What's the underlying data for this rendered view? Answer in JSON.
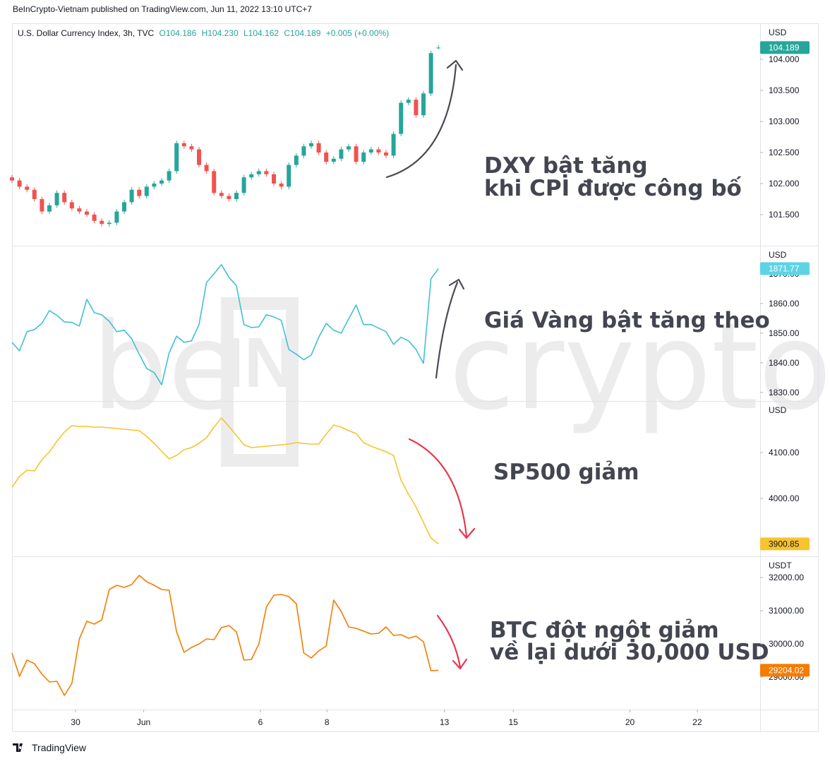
{
  "header": "BeInCrypto-Vietnam published on TradingView.com, Jun 11, 2022 13:10 UTC+7",
  "footer": "TradingView",
  "watermark": [
    "be",
    "IN",
    "crypto"
  ],
  "chart_data": [
    {
      "type": "candlestick",
      "legend": [
        "U.S. Dollar Currency Index, 3h, TVC",
        "O104.186",
        "H104.230",
        "L104.162",
        "C104.189",
        "+0.005 (+0.00%)"
      ],
      "unit": "USD",
      "annotations": [
        "DXY bật tăng",
        "khi CPI được công bố"
      ],
      "up_color": "#26a69a",
      "down_color": "#ef5350",
      "x": [
        0,
        1,
        2,
        3,
        4,
        5,
        6,
        7,
        8,
        9,
        10,
        11,
        12,
        13,
        14,
        15,
        16,
        17,
        18,
        19,
        20,
        21,
        22,
        23,
        24,
        25,
        26,
        27,
        28,
        29,
        30,
        31,
        32,
        33,
        34,
        35,
        36,
        37,
        38,
        39,
        40,
        41,
        42,
        43,
        44,
        45,
        46,
        47,
        48,
        49,
        50,
        51,
        52,
        53,
        54,
        55,
        56,
        57
      ],
      "open": [
        102.1,
        102.05,
        101.95,
        101.9,
        101.75,
        101.55,
        101.65,
        101.85,
        101.7,
        101.6,
        101.55,
        101.5,
        101.4,
        101.35,
        101.37,
        101.55,
        101.7,
        101.9,
        101.8,
        101.95,
        102.0,
        102.05,
        102.2,
        102.65,
        102.6,
        102.55,
        102.3,
        102.2,
        101.85,
        101.8,
        101.75,
        101.85,
        102.1,
        102.15,
        102.2,
        102.15,
        102.0,
        101.95,
        102.3,
        102.45,
        102.6,
        102.65,
        102.5,
        102.35,
        102.4,
        102.55,
        102.6,
        102.35,
        102.5,
        102.55,
        102.5,
        102.45,
        102.8,
        103.3,
        103.35,
        103.1,
        103.45,
        104.186
      ],
      "high": [
        102.14,
        102.09,
        101.99,
        101.94,
        101.79,
        101.69,
        101.89,
        101.89,
        101.74,
        101.64,
        101.59,
        101.54,
        101.44,
        101.41,
        101.59,
        101.74,
        101.94,
        101.94,
        101.99,
        102.04,
        102.09,
        102.24,
        102.69,
        102.69,
        102.64,
        102.59,
        102.34,
        102.24,
        101.89,
        101.84,
        101.89,
        102.14,
        102.19,
        102.24,
        102.24,
        102.19,
        102.04,
        102.34,
        102.49,
        102.64,
        102.69,
        102.69,
        102.54,
        102.44,
        102.59,
        102.64,
        102.64,
        102.54,
        102.59,
        102.59,
        102.54,
        102.84,
        103.34,
        103.39,
        103.39,
        103.49,
        104.14,
        104.23
      ],
      "low": [
        102.01,
        101.91,
        101.86,
        101.71,
        101.51,
        101.51,
        101.61,
        101.66,
        101.56,
        101.51,
        101.46,
        101.36,
        101.31,
        101.31,
        101.33,
        101.51,
        101.66,
        101.76,
        101.76,
        101.91,
        101.96,
        102.01,
        102.16,
        102.56,
        102.51,
        102.26,
        102.16,
        101.81,
        101.76,
        101.71,
        101.71,
        101.81,
        102.06,
        102.11,
        102.11,
        101.96,
        101.91,
        101.91,
        102.26,
        102.41,
        102.56,
        102.46,
        102.31,
        102.31,
        102.36,
        102.51,
        102.31,
        102.31,
        102.46,
        102.46,
        102.41,
        102.41,
        102.76,
        103.26,
        103.06,
        103.06,
        103.41,
        104.162
      ],
      "close": [
        102.05,
        101.95,
        101.9,
        101.75,
        101.55,
        101.65,
        101.85,
        101.7,
        101.6,
        101.55,
        101.5,
        101.4,
        101.35,
        101.37,
        101.55,
        101.7,
        101.9,
        101.8,
        101.95,
        102.0,
        102.05,
        102.2,
        102.65,
        102.6,
        102.55,
        102.3,
        102.2,
        101.85,
        101.8,
        101.75,
        101.85,
        102.1,
        102.15,
        102.2,
        102.15,
        102.0,
        101.95,
        102.3,
        102.45,
        102.6,
        102.65,
        102.5,
        102.35,
        102.4,
        102.55,
        102.6,
        102.35,
        102.5,
        102.55,
        102.5,
        102.45,
        102.8,
        103.3,
        103.35,
        103.1,
        103.45,
        104.1,
        104.189
      ],
      "xlim": [
        0,
        100
      ],
      "ylim": [
        101.0,
        104.58
      ],
      "yticks": [
        {
          "value": 101.5,
          "label": "101.500"
        },
        {
          "value": 102,
          "label": "102.000"
        },
        {
          "value": 102.5,
          "label": "102.500"
        },
        {
          "value": 103,
          "label": "103.000"
        },
        {
          "value": 103.5,
          "label": "103.500"
        },
        {
          "value": 104,
          "label": "104.000"
        }
      ]
    },
    {
      "type": "line",
      "unit": "USD",
      "annotations": [
        "Giá Vàng bật tăng theo"
      ],
      "color": "#3fc1d4",
      "last_label_color": "#5dd3e6",
      "x": [
        0,
        1,
        2,
        3,
        4,
        5,
        6,
        7,
        8,
        9,
        10,
        11,
        12,
        13,
        14,
        15,
        16,
        17,
        18,
        19,
        20,
        21,
        22,
        23,
        24,
        25,
        26,
        27,
        28,
        29,
        30,
        31,
        32,
        33,
        34,
        35,
        36,
        37,
        38,
        39,
        40,
        41,
        42,
        43,
        44,
        45,
        46,
        47,
        48,
        49,
        50,
        51,
        52,
        53,
        54,
        55,
        56,
        57
      ],
      "values": [
        1846.9,
        1844.0,
        1850.5,
        1851.2,
        1853.3,
        1857.6,
        1856.0,
        1853.8,
        1853.6,
        1852.4,
        1861.4,
        1856.9,
        1856.2,
        1854.0,
        1850.5,
        1851.0,
        1848.1,
        1842.9,
        1838.1,
        1836.7,
        1832.6,
        1843.3,
        1849.0,
        1846.9,
        1847.4,
        1852.9,
        1867.1,
        1870.0,
        1873.1,
        1868.8,
        1866.0,
        1852.9,
        1851.9,
        1852.1,
        1856.2,
        1855.5,
        1854.3,
        1844.5,
        1842.9,
        1841.0,
        1842.6,
        1848.6,
        1853.3,
        1851.0,
        1850.0,
        1854.8,
        1859.5,
        1852.9,
        1852.9,
        1851.7,
        1850.5,
        1846.2,
        1848.6,
        1847.4,
        1844.5,
        1839.8,
        1868.3,
        1871.77
      ],
      "xlim": [
        0,
        100
      ],
      "ylim": [
        1827.1,
        1879.5
      ],
      "yticks": [
        {
          "value": 1830,
          "label": "1830.00"
        },
        {
          "value": 1840,
          "label": "1840.00"
        },
        {
          "value": 1850,
          "label": "1850.00"
        },
        {
          "value": 1860,
          "label": "1860.00"
        },
        {
          "value": 1870,
          "label": "1870.00"
        }
      ]
    },
    {
      "type": "line",
      "unit": "USD",
      "annotations": [
        "SP500 giảm"
      ],
      "color": "#f7c32e",
      "last_label_color": "#f7c32e",
      "x": [
        0,
        1,
        2,
        3,
        4,
        5,
        6,
        7,
        8,
        9,
        10,
        11,
        12,
        13,
        14,
        15,
        16,
        17,
        18,
        19,
        20,
        21,
        22,
        23,
        24,
        25,
        26,
        27,
        28,
        29,
        30,
        31,
        32,
        33,
        34,
        35,
        36,
        37,
        38,
        39,
        40,
        41,
        42,
        43,
        44,
        45,
        46,
        47,
        48,
        49,
        50,
        51,
        52,
        53,
        54,
        55,
        56,
        57
      ],
      "values": [
        4024.6,
        4047.7,
        4061.5,
        4060.0,
        4084.6,
        4101.5,
        4124.6,
        4144.6,
        4158.5,
        4156.9,
        4156.9,
        4155.4,
        4155.4,
        4153.8,
        4152.3,
        4150.8,
        4149.2,
        4147.7,
        4135.4,
        4120.0,
        4103.1,
        4086.2,
        4093.8,
        4106.2,
        4110.8,
        4120.0,
        4132.3,
        4155.4,
        4175.4,
        4156.9,
        4136.9,
        4116.9,
        4110.8,
        4112.3,
        4113.8,
        4115.4,
        4116.9,
        4118.5,
        4121.5,
        4120.0,
        4118.5,
        4118.5,
        4140.0,
        4160.0,
        4155.4,
        4147.7,
        4141.5,
        4121.5,
        4113.8,
        4107.7,
        4101.5,
        4093.8,
        4040.0,
        4009.2,
        3981.5,
        3947.7,
        3913.8,
        3900.85
      ],
      "xlim": [
        0,
        100
      ],
      "ylim": [
        3873.8,
        4212.3
      ],
      "yticks": [
        {
          "value": 4000,
          "label": "4000.00"
        },
        {
          "value": 4100,
          "label": "4100.00"
        }
      ]
    },
    {
      "type": "line",
      "unit": "USDT",
      "annotations": [
        "BTC đột ngột giảm",
        "về lại dưới 30,000 USD"
      ],
      "color": "#f57c00",
      "last_label_color": "#f57c00",
      "x": [
        0,
        1,
        2,
        3,
        4,
        5,
        6,
        7,
        8,
        9,
        10,
        11,
        12,
        13,
        14,
        15,
        16,
        17,
        18,
        19,
        20,
        21,
        22,
        23,
        24,
        25,
        26,
        27,
        28,
        29,
        30,
        31,
        32,
        33,
        34,
        35,
        36,
        37,
        38,
        39,
        40,
        41,
        42,
        43,
        44,
        45,
        46,
        47,
        48,
        49,
        50,
        51,
        52,
        53,
        54,
        55,
        56,
        57
      ],
      "values": [
        29723,
        29021,
        29511,
        29404,
        29085,
        28851,
        28872,
        28447,
        28809,
        30149,
        30681,
        30596,
        30723,
        31638,
        31766,
        31702,
        31787,
        32064,
        31872,
        31766,
        31638,
        31617,
        30362,
        29745,
        29894,
        30000,
        30149,
        30128,
        30489,
        30553,
        30362,
        29511,
        29532,
        30000,
        31106,
        31468,
        31489,
        31426,
        31213,
        29723,
        29574,
        29787,
        29936,
        31319,
        30979,
        30511,
        30468,
        30383,
        30298,
        30319,
        30511,
        30255,
        30277,
        30170,
        30234,
        30064,
        29191,
        29204.02
      ],
      "xlim": [
        0,
        100
      ],
      "ylim": [
        28021,
        32638
      ],
      "yticks": [
        {
          "value": 29000,
          "label": "29000.00"
        },
        {
          "value": 30000,
          "label": "30000.00"
        },
        {
          "value": 31000,
          "label": "31000.00"
        },
        {
          "value": 32000,
          "label": "32000.00"
        }
      ],
      "xticks": [
        {
          "value": 8.5,
          "label": "30"
        },
        {
          "value": 17.6,
          "label": "Jun"
        },
        {
          "value": 33.2,
          "label": "6"
        },
        {
          "value": 42.1,
          "label": "8"
        },
        {
          "value": 57.8,
          "label": "13"
        },
        {
          "value": 67.0,
          "label": "15"
        },
        {
          "value": 82.6,
          "label": "20"
        },
        {
          "value": 91.6,
          "label": "22"
        }
      ]
    }
  ]
}
